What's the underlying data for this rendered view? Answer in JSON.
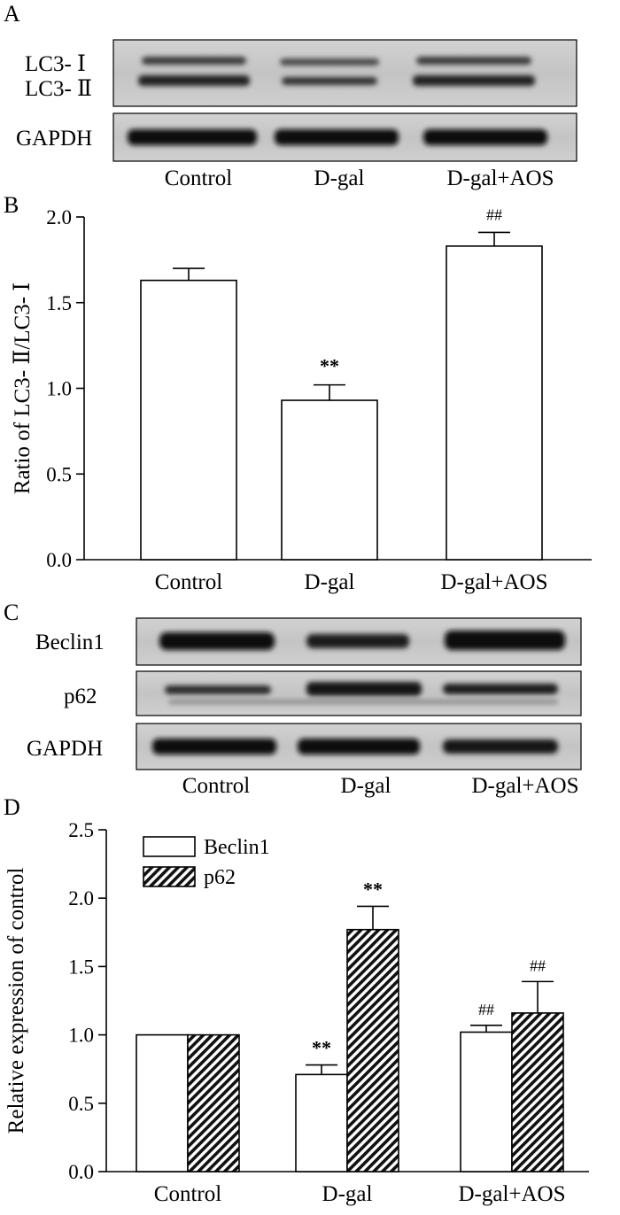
{
  "figure": {
    "panels": {
      "A": "A",
      "B": "B",
      "C": "C",
      "D": "D"
    },
    "groups": [
      "Control",
      "D-gal",
      "D-gal+AOS"
    ]
  },
  "blot_a": {
    "rows": [
      {
        "label_lines": [
          "LC3- Ⅰ",
          "LC3- Ⅱ"
        ]
      },
      {
        "label_lines": [
          "GAPDH"
        ]
      }
    ],
    "lanes": [
      "Control",
      "D-gal",
      "D-gal+AOS"
    ]
  },
  "blot_c": {
    "rows": [
      {
        "label": "Beclin1"
      },
      {
        "label": "p62"
      },
      {
        "label": "GAPDH"
      }
    ],
    "lanes": [
      "Control",
      "D-gal",
      "D-gal+AOS"
    ]
  },
  "chart_data": [
    {
      "panel": "B",
      "type": "bar",
      "categories": [
        "Control",
        "D-gal",
        "D-gal+AOS"
      ],
      "values": [
        1.63,
        0.93,
        1.83
      ],
      "errors": [
        0.07,
        0.09,
        0.08
      ],
      "annotations": [
        "",
        "**",
        "##"
      ],
      "ylabel": "Ratio of LC3- Ⅱ/LC3- Ⅰ",
      "xlabel": "",
      "ylim": [
        0,
        2.0
      ],
      "yticks": [
        "0.0",
        "0.5",
        "1.0",
        "1.5",
        "2.0"
      ],
      "grid": false,
      "bar_fill": "#ffffff"
    },
    {
      "panel": "D",
      "type": "bar",
      "categories": [
        "Control",
        "D-gal",
        "D-gal+AOS"
      ],
      "series": [
        {
          "name": "Beclin1",
          "pattern": "open",
          "values": [
            1.0,
            0.71,
            1.02
          ],
          "errors": [
            0,
            0.07,
            0.05
          ],
          "annotations": [
            "",
            "**",
            "##"
          ]
        },
        {
          "name": "p62",
          "pattern": "hatched",
          "values": [
            1.0,
            1.77,
            1.16
          ],
          "errors": [
            0,
            0.17,
            0.23
          ],
          "annotations": [
            "",
            "**",
            "##"
          ]
        }
      ],
      "ylabel": "Relative expression of control",
      "xlabel": "",
      "ylim": [
        0,
        2.5
      ],
      "yticks": [
        "0.0",
        "0.5",
        "1.0",
        "1.5",
        "2.0",
        "2.5"
      ],
      "grid": false,
      "legend_position": "top-left"
    }
  ]
}
